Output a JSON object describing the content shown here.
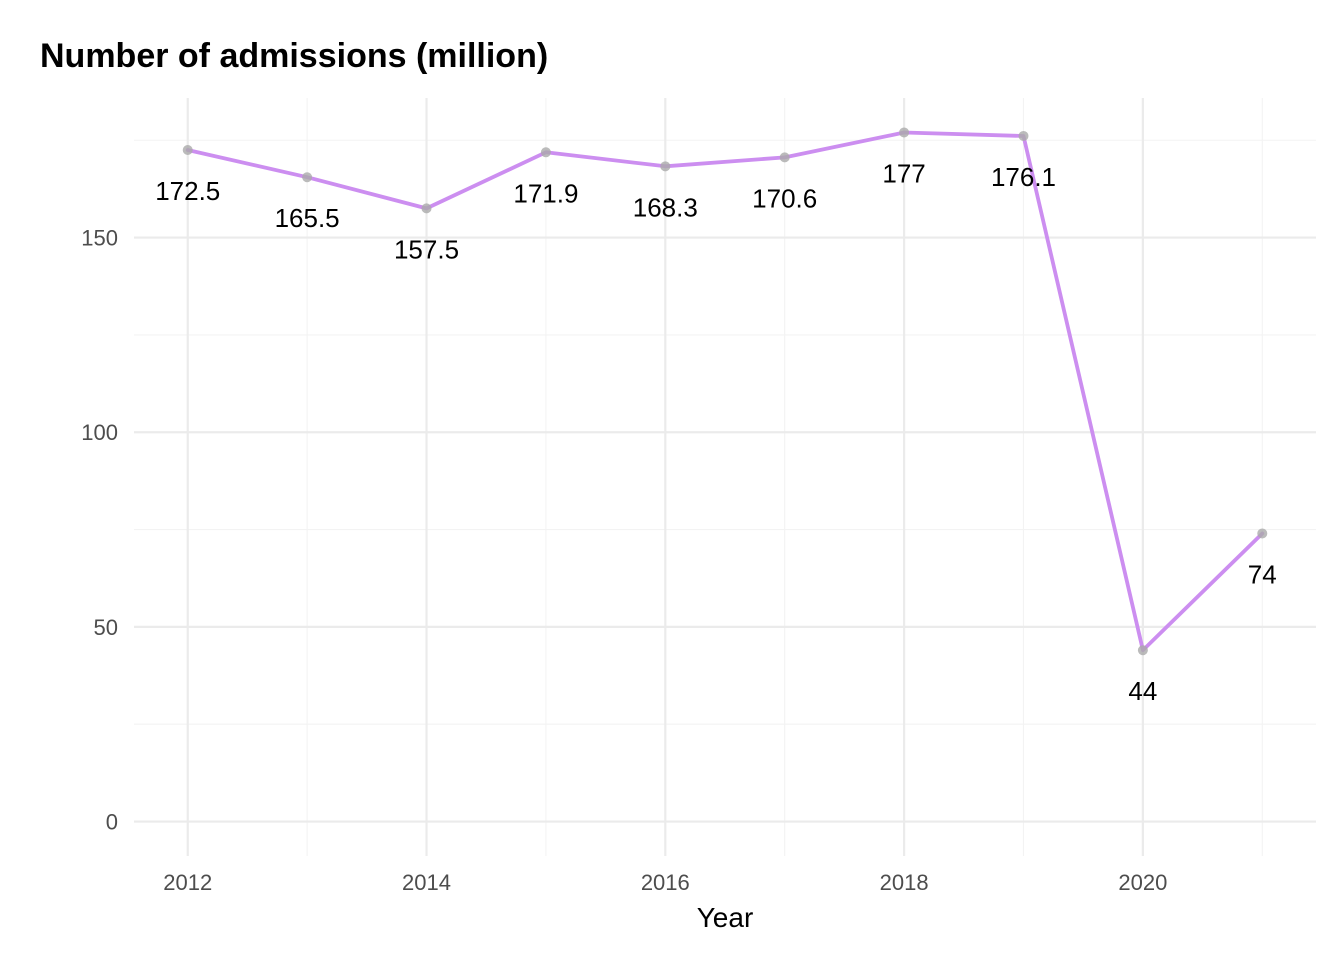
{
  "chart_data": {
    "type": "line",
    "title": "Number of admissions (million)",
    "xlabel": "Year",
    "ylabel": "",
    "x": [
      2012,
      2013,
      2014,
      2015,
      2016,
      2017,
      2018,
      2019,
      2020,
      2021
    ],
    "series": [
      {
        "values": [
          172.5,
          165.5,
          157.5,
          171.9,
          168.3,
          170.6,
          177,
          176.1,
          44,
          74
        ]
      }
    ],
    "data_labels": [
      "172.5",
      "165.5",
      "157.5",
      "171.9",
      "168.3",
      "170.6",
      "177",
      "176.1",
      "44",
      "74"
    ],
    "x_ticks": [
      "2012",
      "2014",
      "2016",
      "2018",
      "2020"
    ],
    "y_ticks": [
      "0",
      "50",
      "100",
      "150"
    ],
    "xlim": [
      2011.55,
      2021.45
    ],
    "ylim": [
      -8.85,
      185.85
    ],
    "grid": true,
    "legend": "none",
    "colors": {
      "line": "#cc8ef0",
      "points": "#aaaaaa",
      "grid": "#ebebeb"
    }
  }
}
